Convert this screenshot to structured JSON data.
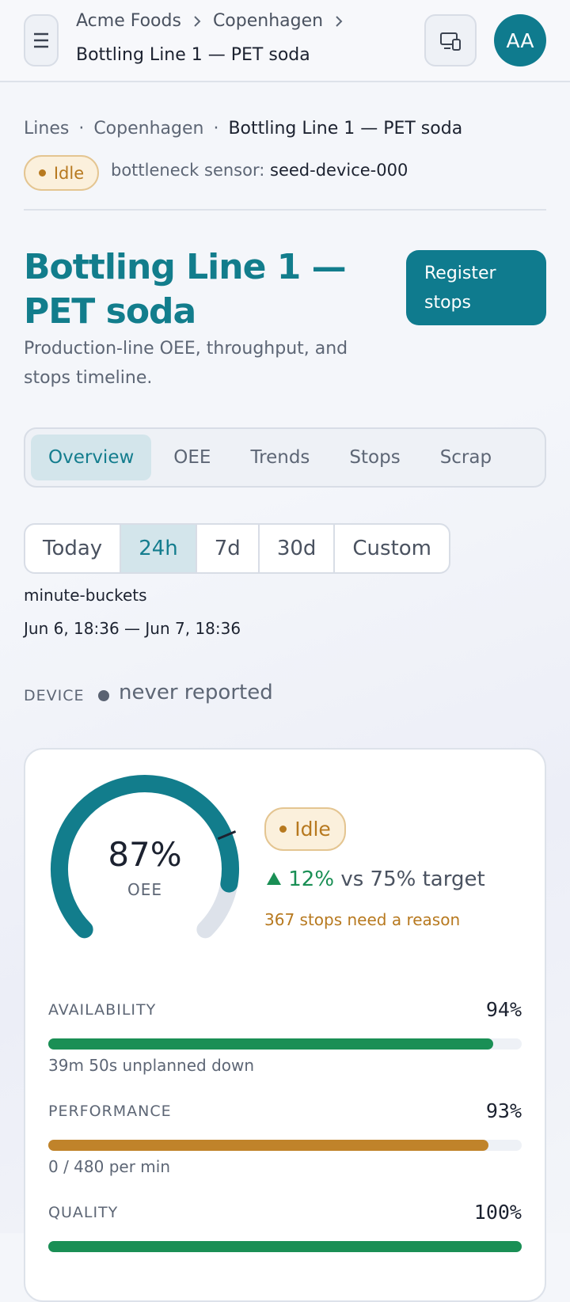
{
  "header": {
    "breadcrumb": [
      "Acme Foods",
      "Copenhagen"
    ],
    "title": "Bottling Line 1 — PET soda",
    "avatar": "AA"
  },
  "crumbs": [
    "Lines",
    "Copenhagen",
    "Bottling Line 1 — PET soda"
  ],
  "status": "Idle",
  "sensor_label": "bottleneck sensor:",
  "sensor": "seed-device-000",
  "page": {
    "title": "Bottling Line 1 — PET soda",
    "subtitle": "Production-line OEE, throughput, and stops timeline.",
    "action": "Register stops"
  },
  "tabs": {
    "items": [
      "Overview",
      "OEE",
      "Trends",
      "Stops",
      "Scrap"
    ],
    "active": 0
  },
  "ranges": {
    "items": [
      "Today",
      "24h",
      "7d",
      "30d",
      "Custom"
    ],
    "active": 1
  },
  "bucket": "minute-buckets",
  "period": "Jun 6, 18:36 — Jun 7, 18:36",
  "device": {
    "label": "DEVICE",
    "state": "never reported"
  },
  "oee": {
    "value": 87,
    "label": "87%",
    "caption": "OEE",
    "target": 75,
    "scale": [
      0,
      100
    ],
    "status": "Idle",
    "delta": "12%",
    "versus": "vs 75% target",
    "stops": "367 stops need a reason"
  },
  "metrics": [
    {
      "name": "AVAILABILITY",
      "value": 94,
      "label": "94%",
      "note": "39m 50s unplanned down",
      "color": "#1a8f55"
    },
    {
      "name": "PERFORMANCE",
      "value": 93,
      "label": "93%",
      "note": "0 / 480 per min",
      "color": "#c0832a"
    },
    {
      "name": "QUALITY",
      "value": 100,
      "label": "100%",
      "note": null,
      "color": "#1a8f55"
    }
  ]
}
